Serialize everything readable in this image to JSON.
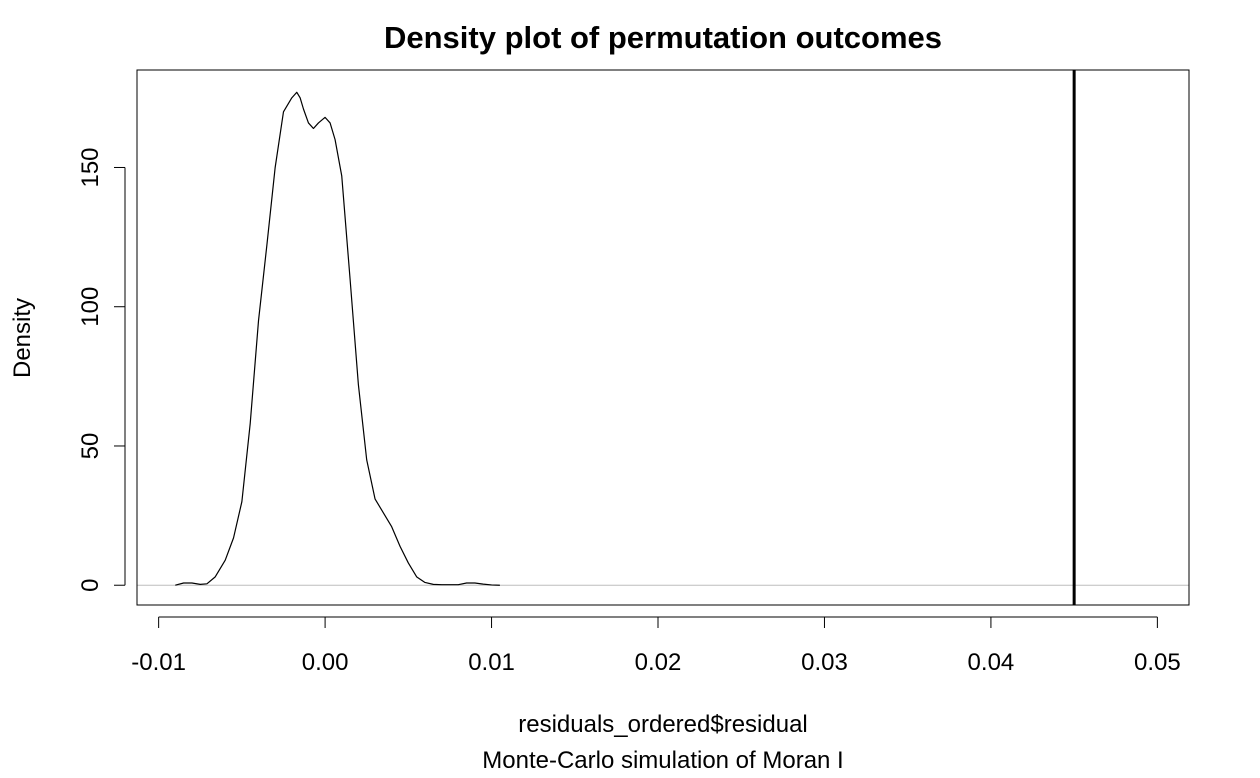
{
  "chart_data": {
    "type": "line",
    "title": "Density plot of permutation outcomes",
    "xlabel": "residuals_ordered$residual",
    "sub": "Monte-Carlo simulation of Moran I",
    "ylabel": "Density",
    "xlim": [
      -0.0113,
      0.0519
    ],
    "ylim": [
      -7.1,
      185.0
    ],
    "x_ticks": [
      -0.01,
      0.0,
      0.01,
      0.02,
      0.03,
      0.04,
      0.05
    ],
    "x_tick_labels": [
      "-0.01",
      "0.00",
      "0.01",
      "0.02",
      "0.03",
      "0.04",
      "0.05"
    ],
    "y_ticks": [
      0,
      50,
      100,
      150
    ],
    "y_tick_labels": [
      "0",
      "50",
      "100",
      "150"
    ],
    "series": [
      {
        "x": [
          -0.009,
          -0.0085,
          -0.008,
          -0.0075,
          -0.0071,
          -0.0066,
          -0.006,
          -0.0055,
          -0.005,
          -0.0045,
          -0.004,
          -0.0035,
          -0.003,
          -0.0025,
          -0.002,
          -0.0017,
          -0.0015,
          -0.0013,
          -0.001,
          -0.0007,
          -0.0004,
          0.0,
          0.0003,
          0.0006,
          0.001,
          0.0015,
          0.002,
          0.0025,
          0.003,
          0.0035,
          0.004,
          0.0045,
          0.005,
          0.0055,
          0.006,
          0.0065,
          0.007,
          0.0075,
          0.008,
          0.0085,
          0.009,
          0.0095,
          0.01,
          0.0105
        ],
        "y": [
          0,
          0.8,
          0.8,
          0.3,
          0.5,
          3,
          9,
          17,
          30,
          58,
          95,
          122,
          150,
          170,
          175,
          177,
          175,
          171,
          166,
          164,
          166,
          168,
          166,
          160,
          147,
          110,
          72,
          45,
          31,
          26,
          21,
          14,
          8,
          3,
          1,
          0.3,
          0.2,
          0.2,
          0.2,
          0.8,
          0.8,
          0.4,
          0.1,
          0
        ]
      }
    ],
    "reference_lines": {
      "vertical": [
        0.045
      ],
      "horizontal": [
        0
      ]
    },
    "grid": false,
    "legend": "none",
    "colors": {
      "curve": "#000000",
      "vline": "#000000",
      "zero_line": "#bebebe",
      "frame": "#000000"
    }
  }
}
